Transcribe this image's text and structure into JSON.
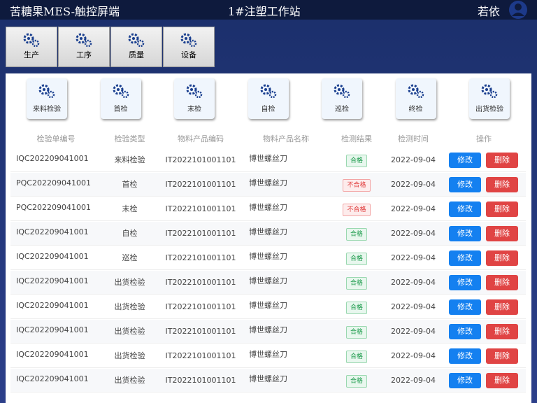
{
  "header": {
    "app_title": "苦糖果MES-触控屏端",
    "station": "1#注塑工作站",
    "user": "若依"
  },
  "nav": [
    "生产",
    "工序",
    "质量",
    "设备"
  ],
  "inspection_types": [
    "来料检验",
    "首检",
    "末检",
    "自检",
    "巡检",
    "终检",
    "出货检验"
  ],
  "table": {
    "columns": [
      "检验单编号",
      "检验类型",
      "物料产品编码",
      "物料产品名称",
      "检测结果",
      "检测时间",
      "操作"
    ],
    "actions": [
      "修改",
      "删除"
    ],
    "rows": [
      [
        "IQC202209041001",
        "来料检验",
        "IT2022101001101",
        "博世螺丝刀",
        "合格",
        "2022-09-04"
      ],
      [
        "PQC202209041001",
        "首检",
        "IT2022101001101",
        "博世螺丝刀",
        "不合格",
        "2022-09-04"
      ],
      [
        "PQC202209041001",
        "末检",
        "IT2022101001101",
        "博世螺丝刀",
        "不合格",
        "2022-09-04"
      ],
      [
        "IQC202209041001",
        "自检",
        "IT2022101001101",
        "博世螺丝刀",
        "合格",
        "2022-09-04"
      ],
      [
        "IQC202209041001",
        "巡检",
        "IT2022101001101",
        "博世螺丝刀",
        "合格",
        "2022-09-04"
      ],
      [
        "IQC202209041001",
        "出货检验",
        "IT2022101001101",
        "博世螺丝刀",
        "合格",
        "2022-09-04"
      ],
      [
        "IQC202209041001",
        "出货检验",
        "IT2022101001101",
        "博世螺丝刀",
        "合格",
        "2022-09-04"
      ],
      [
        "IQC202209041001",
        "出货检验",
        "IT2022101001101",
        "博世螺丝刀",
        "合格",
        "2022-09-04"
      ],
      [
        "IQC202209041001",
        "出货检验",
        "IT2022101001101",
        "博世螺丝刀",
        "合格",
        "2022-09-04"
      ],
      [
        "IQC202209041001",
        "出货检验",
        "IT2022101001101",
        "博世螺丝刀",
        "合格",
        "2022-09-04"
      ]
    ]
  }
}
